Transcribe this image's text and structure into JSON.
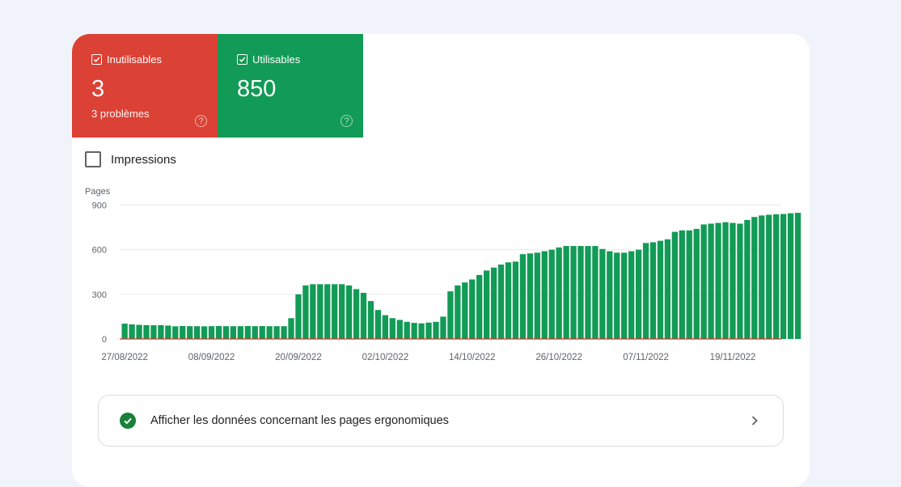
{
  "tiles": [
    {
      "label": "Inutilisables",
      "value": "3",
      "sub": "3 problèmes",
      "help": "?",
      "color": "#dc4135"
    },
    {
      "label": "Utilisables",
      "value": "850",
      "help": "?",
      "color": "#129b56"
    }
  ],
  "impressions": {
    "label": "Impressions",
    "checked": false
  },
  "link": {
    "label": "Afficher les données concernant les pages ergonomiques",
    "icon": "check-circle-icon",
    "arrow_icon": "chevron-right-icon"
  },
  "chart_data": {
    "type": "bar",
    "ylabel": "Pages",
    "ylim": [
      0,
      900
    ],
    "yticks": [
      0,
      300,
      600,
      900
    ],
    "x_tick_labels": [
      "27/08/2022",
      "08/09/2022",
      "20/09/2022",
      "02/10/2022",
      "14/10/2022",
      "26/10/2022",
      "07/11/2022",
      "19/11/2022"
    ],
    "x_tick_indices": [
      0,
      12,
      24,
      36,
      48,
      60,
      72,
      84
    ],
    "series": [
      {
        "color": "#129b56",
        "values": [
          103,
          98,
          95,
          93,
          92,
          93,
          90,
          85,
          87,
          86,
          86,
          85,
          86,
          87,
          86,
          86,
          86,
          87,
          86,
          87,
          86,
          86,
          86,
          140,
          300,
          360,
          368,
          368,
          368,
          368,
          368,
          360,
          335,
          310,
          255,
          195,
          160,
          140,
          128,
          115,
          108,
          105,
          110,
          115,
          150,
          320,
          360,
          380,
          400,
          430,
          460,
          480,
          500,
          515,
          520,
          570,
          575,
          580,
          590,
          600,
          615,
          625,
          625,
          625,
          625,
          625,
          605,
          590,
          580,
          580,
          590,
          600,
          645,
          650,
          660,
          670,
          720,
          730,
          730,
          740,
          770,
          775,
          780,
          785,
          780,
          775,
          800,
          820,
          830,
          835,
          838,
          840,
          845,
          848
        ]
      },
      {
        "color": "#d93025",
        "values": [
          3
        ]
      }
    ]
  }
}
